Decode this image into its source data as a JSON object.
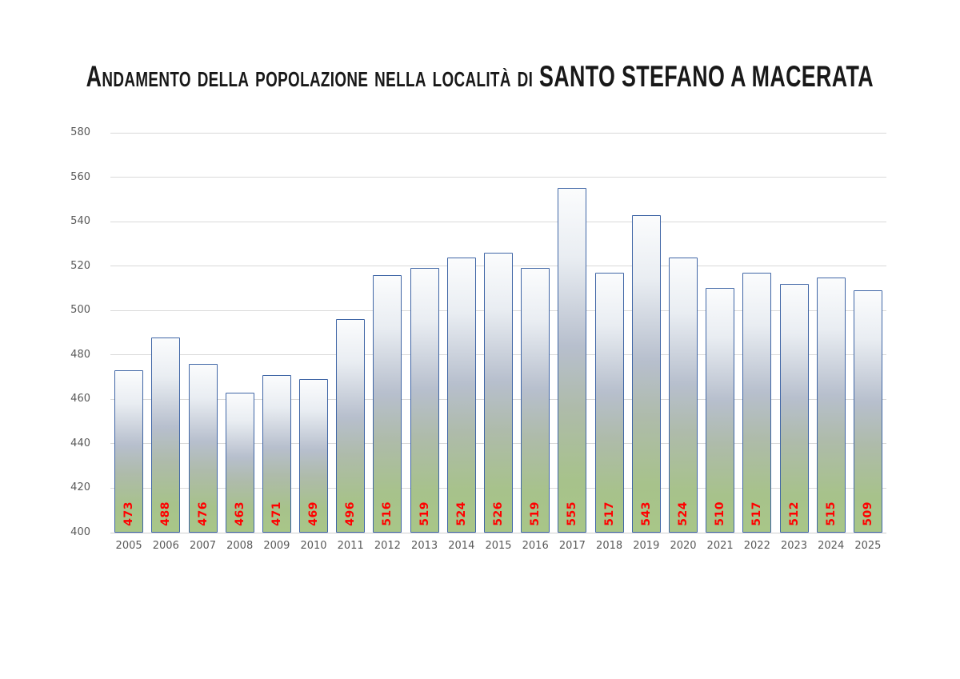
{
  "title": "Andamento della popolazione nella località di SANTO STEFANO A MACERATA",
  "chart_data": {
    "type": "bar",
    "title": "Andamento della popolazione nella località di SANTO STEFANO A MACERATA",
    "categories": [
      "2005",
      "2006",
      "2007",
      "2008",
      "2009",
      "2010",
      "2011",
      "2012",
      "2013",
      "2014",
      "2015",
      "2016",
      "2017",
      "2018",
      "2019",
      "2020",
      "2021",
      "2022",
      "2023",
      "2024",
      "2025"
    ],
    "values": [
      473,
      488,
      476,
      463,
      471,
      469,
      496,
      516,
      519,
      524,
      526,
      519,
      555,
      517,
      543,
      524,
      510,
      517,
      512,
      515,
      509
    ],
    "xlabel": "",
    "ylabel": "",
    "ylim": [
      400,
      580
    ],
    "ytick_step": 20,
    "grid": true,
    "legend": false,
    "value_labels": {
      "position": "inside-base",
      "orientation": "rotated-90-ccw",
      "color": "#ff0000"
    },
    "style": {
      "bar_border_color": "#4066a6",
      "bar_gradient_stops": [
        "#fbfcfd 0%",
        "#e9edf2 20%",
        "#b7bfcd 46%",
        "#aebbaa 64%",
        "#a7c28b 85%",
        "#a8c688 100%"
      ],
      "gridline_color": "#d9d9d9",
      "axis_label_color": "#595959",
      "title_color": "#181818",
      "background": "#ffffff"
    }
  }
}
